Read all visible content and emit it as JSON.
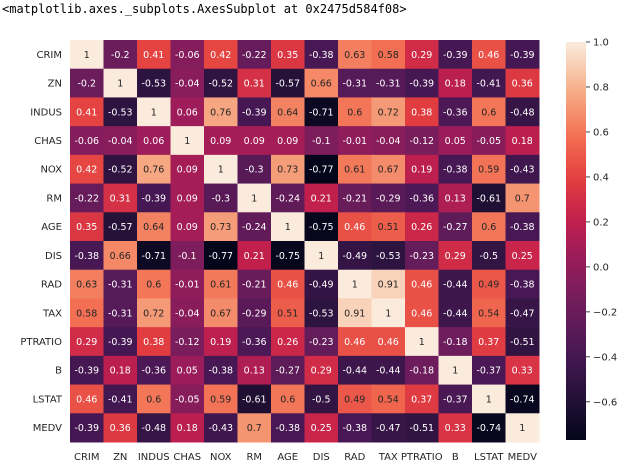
{
  "output_text": "<matplotlib.axes._subplots.AxesSubplot at 0x2475d584f08>",
  "chart_data": {
    "type": "heatmap",
    "labels": [
      "CRIM",
      "ZN",
      "INDUS",
      "CHAS",
      "NOX",
      "RM",
      "AGE",
      "DIS",
      "RAD",
      "TAX",
      "PTRATIO",
      "B",
      "LSTAT",
      "MEDV"
    ],
    "values": [
      [
        1,
        -0.2,
        0.41,
        -0.06,
        0.42,
        -0.22,
        0.35,
        -0.38,
        0.63,
        0.58,
        0.29,
        -0.39,
        0.46,
        -0.39
      ],
      [
        -0.2,
        1,
        -0.53,
        -0.04,
        -0.52,
        0.31,
        -0.57,
        0.66,
        -0.31,
        -0.31,
        -0.39,
        0.18,
        -0.41,
        0.36
      ],
      [
        0.41,
        -0.53,
        1,
        0.06,
        0.76,
        -0.39,
        0.64,
        -0.71,
        0.6,
        0.72,
        0.38,
        -0.36,
        0.6,
        -0.48
      ],
      [
        -0.06,
        -0.04,
        0.06,
        1,
        0.09,
        0.09,
        0.09,
        -0.1,
        -0.01,
        -0.04,
        -0.12,
        0.05,
        -0.05,
        0.18
      ],
      [
        0.42,
        -0.52,
        0.76,
        0.09,
        1,
        -0.3,
        0.73,
        -0.77,
        0.61,
        0.67,
        0.19,
        -0.38,
        0.59,
        -0.43
      ],
      [
        -0.22,
        0.31,
        -0.39,
        0.09,
        -0.3,
        1,
        -0.24,
        0.21,
        -0.21,
        -0.29,
        -0.36,
        0.13,
        -0.61,
        0.7
      ],
      [
        0.35,
        -0.57,
        0.64,
        0.09,
        0.73,
        -0.24,
        1,
        -0.75,
        0.46,
        0.51,
        0.26,
        -0.27,
        0.6,
        -0.38
      ],
      [
        -0.38,
        0.66,
        -0.71,
        -0.1,
        -0.77,
        0.21,
        -0.75,
        1,
        -0.49,
        -0.53,
        -0.23,
        0.29,
        -0.5,
        0.25
      ],
      [
        0.63,
        -0.31,
        0.6,
        -0.01,
        0.61,
        -0.21,
        0.46,
        -0.49,
        1,
        0.91,
        0.46,
        -0.44,
        0.49,
        -0.38
      ],
      [
        0.58,
        -0.31,
        0.72,
        -0.04,
        0.67,
        -0.29,
        0.51,
        -0.53,
        0.91,
        1,
        0.46,
        -0.44,
        0.54,
        -0.47
      ],
      [
        0.29,
        -0.39,
        0.38,
        -0.12,
        0.19,
        -0.36,
        0.26,
        -0.23,
        0.46,
        0.46,
        1,
        -0.18,
        0.37,
        -0.51
      ],
      [
        -0.39,
        0.18,
        -0.36,
        0.05,
        -0.38,
        0.13,
        -0.27,
        0.29,
        -0.44,
        -0.44,
        -0.18,
        1,
        -0.37,
        0.33
      ],
      [
        0.46,
        -0.41,
        0.6,
        -0.05,
        0.59,
        -0.61,
        0.6,
        -0.5,
        0.49,
        0.54,
        0.37,
        -0.37,
        1,
        -0.74
      ],
      [
        -0.39,
        0.36,
        -0.48,
        0.18,
        -0.43,
        0.7,
        -0.38,
        0.25,
        -0.38,
        -0.47,
        -0.51,
        0.33,
        -0.74,
        1
      ]
    ],
    "vmin": -0.77,
    "vmax": 1.0,
    "colormap": "rocket",
    "annotations": true,
    "colorbar_ticks": [
      1.0,
      0.8,
      0.6,
      0.4,
      0.2,
      0.0,
      -0.2,
      -0.4,
      -0.6
    ],
    "colorbar_tick_labels": [
      "1.0",
      "0.8",
      "0.6",
      "0.4",
      "0.2",
      "0.0",
      "−0.2",
      "−0.4",
      "−0.6"
    ],
    "colorbar_placement": "right"
  }
}
